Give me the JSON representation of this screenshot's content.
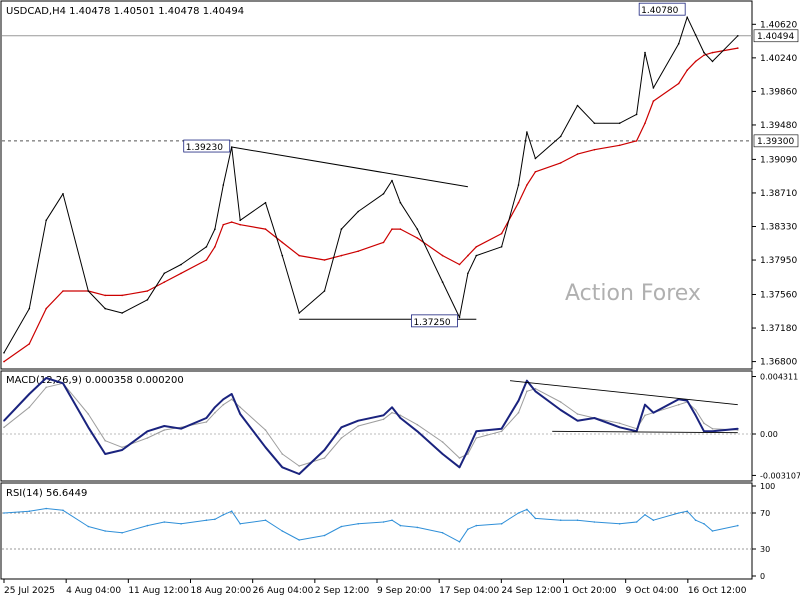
{
  "chart_data": [
    {
      "panel": "price",
      "type": "line",
      "title": "USDCAD,H4  1.40478 1.40501 1.40478 1.40494",
      "watermark": "Action Forex",
      "y_ticks": [
        "1.40620",
        "1.40240",
        "1.39860",
        "1.39480",
        "1.39090",
        "1.38710",
        "1.38330",
        "1.37950",
        "1.37560",
        "1.37180",
        "1.36800"
      ],
      "ylim": [
        1.3675,
        1.4085
      ],
      "current_price": "1.40494",
      "horizontal_levels": [
        {
          "value": 1.4049,
          "label": "1.40494",
          "style": "solid"
        },
        {
          "value": 1.393,
          "label": "1.39300",
          "style": "dashed"
        }
      ],
      "annotations": [
        {
          "label": "1.39230",
          "value": 1.3923,
          "date": "2025-08-21"
        },
        {
          "label": "1.37250",
          "value": 1.3725,
          "date": "2025-09-17"
        },
        {
          "label": "1.40780",
          "value": 1.4078,
          "date": "2025-10-14"
        }
      ],
      "trendlines": [
        {
          "from": {
            "date": "2025-08-21",
            "value": 1.3923
          },
          "to": {
            "date": "2025-09-18",
            "value": 1.3878
          }
        },
        {
          "from": {
            "date": "2025-08-29",
            "value": 1.3728
          },
          "to": {
            "date": "2025-09-19",
            "value": 1.3728
          }
        }
      ],
      "x": [
        "2025-07-25",
        "2025-07-28",
        "2025-07-30",
        "2025-08-01",
        "2025-08-04",
        "2025-08-06",
        "2025-08-08",
        "2025-08-11",
        "2025-08-13",
        "2025-08-15",
        "2025-08-18",
        "2025-08-19",
        "2025-08-20",
        "2025-08-21",
        "2025-08-22",
        "2025-08-25",
        "2025-08-27",
        "2025-08-29",
        "2025-09-01",
        "2025-09-03",
        "2025-09-05",
        "2025-09-08",
        "2025-09-09",
        "2025-09-10",
        "2025-09-12",
        "2025-09-15",
        "2025-09-17",
        "2025-09-18",
        "2025-09-19",
        "2025-09-22",
        "2025-09-24",
        "2025-09-25",
        "2025-09-26",
        "2025-09-29",
        "2025-10-01",
        "2025-10-03",
        "2025-10-06",
        "2025-10-08",
        "2025-10-09",
        "2025-10-10",
        "2025-10-13",
        "2025-10-14",
        "2025-10-15",
        "2025-10-16",
        "2025-10-17",
        "2025-10-20"
      ],
      "series": [
        {
          "name": "Close",
          "values": [
            1.369,
            1.374,
            1.384,
            1.387,
            1.376,
            1.374,
            1.3735,
            1.375,
            1.378,
            1.379,
            1.381,
            1.383,
            1.388,
            1.3923,
            1.384,
            1.386,
            1.38,
            1.3735,
            1.376,
            1.383,
            1.385,
            1.387,
            1.3885,
            1.386,
            1.383,
            1.377,
            1.373,
            1.378,
            1.38,
            1.381,
            1.388,
            1.394,
            1.391,
            1.3935,
            1.397,
            1.395,
            1.395,
            1.396,
            1.403,
            1.399,
            1.404,
            1.407,
            1.405,
            1.403,
            1.402,
            1.4049
          ]
        },
        {
          "name": "MA",
          "values": [
            1.368,
            1.37,
            1.374,
            1.376,
            1.376,
            1.3755,
            1.3755,
            1.376,
            1.377,
            1.378,
            1.3795,
            1.381,
            1.3835,
            1.3838,
            1.3835,
            1.383,
            1.3815,
            1.38,
            1.3795,
            1.38,
            1.3805,
            1.3815,
            1.383,
            1.383,
            1.382,
            1.38,
            1.379,
            1.38,
            1.381,
            1.3825,
            1.386,
            1.388,
            1.3895,
            1.3905,
            1.3915,
            1.392,
            1.3925,
            1.393,
            1.395,
            1.3975,
            1.3995,
            1.401,
            1.402,
            1.4027,
            1.403,
            1.4035
          ]
        }
      ]
    },
    {
      "panel": "macd",
      "type": "line",
      "label": "MACD(12,26,9) 0.000358 0.000200",
      "y_ticks": [
        "0.004311",
        "0.00",
        "-0.003107"
      ],
      "ylim": [
        -0.0033,
        0.0045
      ],
      "series": [
        {
          "name": "MACD",
          "values": [
            0.001,
            0.003,
            0.0042,
            0.0038,
            0.0005,
            -0.0015,
            -0.0012,
            0.0002,
            0.0006,
            0.0004,
            0.0012,
            0.002,
            0.0026,
            0.003,
            0.0015,
            -0.001,
            -0.0025,
            -0.003,
            -0.0012,
            0.0005,
            0.001,
            0.0014,
            0.002,
            0.0012,
            0.0002,
            -0.0015,
            -0.0025,
            -0.0012,
            0.0002,
            0.0004,
            0.0025,
            0.004,
            0.0032,
            0.0018,
            0.001,
            0.0012,
            0.0005,
            0.0002,
            0.0022,
            0.0016,
            0.0026,
            0.0025,
            0.0014,
            0.0002,
            0.0002,
            0.0004
          ]
        },
        {
          "name": "Signal",
          "values": [
            0.0005,
            0.002,
            0.0035,
            0.0038,
            0.0015,
            -0.0005,
            -0.001,
            -0.0003,
            0.0003,
            0.0005,
            0.0009,
            0.0016,
            0.0022,
            0.0026,
            0.002,
            0.0003,
            -0.0015,
            -0.0024,
            -0.0018,
            -0.0003,
            0.0006,
            0.0011,
            0.0016,
            0.0014,
            0.0007,
            -0.0006,
            -0.0018,
            -0.0015,
            -0.0003,
            0.0002,
            0.0016,
            0.0032,
            0.0034,
            0.0024,
            0.0015,
            0.0012,
            0.0008,
            0.0004,
            0.0014,
            0.0016,
            0.0022,
            0.0024,
            0.0018,
            0.0008,
            0.0004,
            0.0003
          ]
        }
      ],
      "trendlines": [
        {
          "from": {
            "date": "2025-09-23",
            "value": 0.004
          },
          "to": {
            "date": "2025-10-20",
            "value": 0.0022
          }
        },
        {
          "from": {
            "date": "2025-09-28",
            "value": 0.0002
          },
          "to": {
            "date": "2025-10-20",
            "value": 0.0001
          }
        }
      ]
    },
    {
      "panel": "rsi",
      "type": "line",
      "label": "RSI(14) 56.6449",
      "y_ticks": [
        "100",
        "70",
        "30",
        "0"
      ],
      "ylim": [
        0,
        100
      ],
      "levels": [
        70,
        30
      ],
      "series": [
        {
          "name": "RSI",
          "values": [
            70,
            72,
            75,
            73,
            55,
            50,
            48,
            56,
            60,
            58,
            62,
            63,
            68,
            72,
            58,
            62,
            50,
            40,
            45,
            55,
            58,
            60,
            62,
            56,
            54,
            48,
            38,
            52,
            56,
            58,
            70,
            74,
            64,
            62,
            62,
            60,
            58,
            60,
            68,
            62,
            70,
            72,
            62,
            58,
            50,
            56
          ]
        }
      ]
    }
  ],
  "x_tick_labels": [
    "25 Jul 2025",
    "4 Aug 04:00",
    "11 Aug 12:00",
    "18 Aug 20:00",
    "26 Aug 04:00",
    "2 Sep 12:00",
    "9 Sep 20:00",
    "17 Sep 04:00",
    "24 Sep 12:00",
    "1 Oct 20:00",
    "9 Oct 04:00",
    "16 Oct 12:00"
  ],
  "colors": {
    "price_line": "#000000",
    "moving_average": "#cc0000",
    "macd_line": "#1a237e",
    "signal_line": "#9e9e9e",
    "rsi_line": "#2f8fd8",
    "label_box_border": "#1a237e",
    "watermark": "#b0b0b0"
  }
}
